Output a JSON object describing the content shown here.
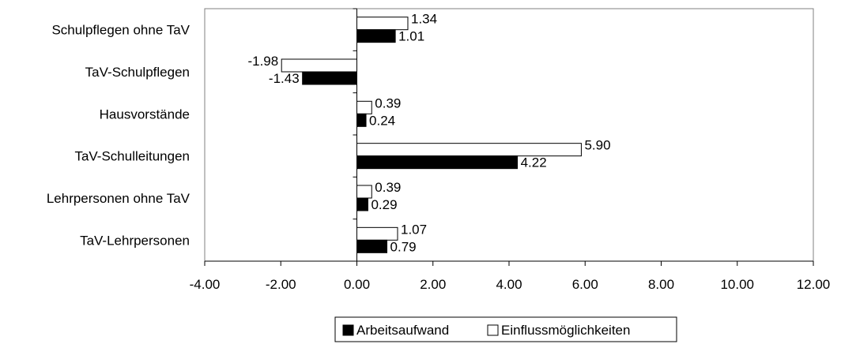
{
  "chart_data": {
    "type": "bar",
    "orientation": "horizontal",
    "categories": [
      "Schulpflegen ohne TaV",
      "TaV-Schulpflegen",
      "Hausvorstände",
      "TaV-Schulleitungen",
      "Lehrpersonen ohne TaV",
      "TaV-Lehrpersonen"
    ],
    "series": [
      {
        "name": "Einflussmöglichkeiten",
        "color": "#ffffff",
        "values": [
          1.34,
          -1.98,
          0.39,
          5.9,
          0.39,
          1.07
        ],
        "labels": [
          "1.34",
          "-1.98",
          "0.39",
          "5.90",
          "0.39",
          "1.07"
        ]
      },
      {
        "name": "Arbeitsaufwand",
        "color": "#000000",
        "values": [
          1.01,
          -1.43,
          0.24,
          4.22,
          0.29,
          0.79
        ],
        "labels": [
          "1.01",
          "-1.43",
          "0.24",
          "4.22",
          "0.29",
          "0.79"
        ]
      }
    ],
    "xlim": [
      -4,
      12
    ],
    "xticks": [
      "-4.00",
      "-2.00",
      "0.00",
      "2.00",
      "4.00",
      "6.00",
      "8.00",
      "10.00",
      "12.00"
    ],
    "grid": false,
    "legend": {
      "placement": "bottom-center",
      "entries": [
        "Arbeitsaufwand",
        "Einflussmöglichkeiten"
      ]
    }
  }
}
